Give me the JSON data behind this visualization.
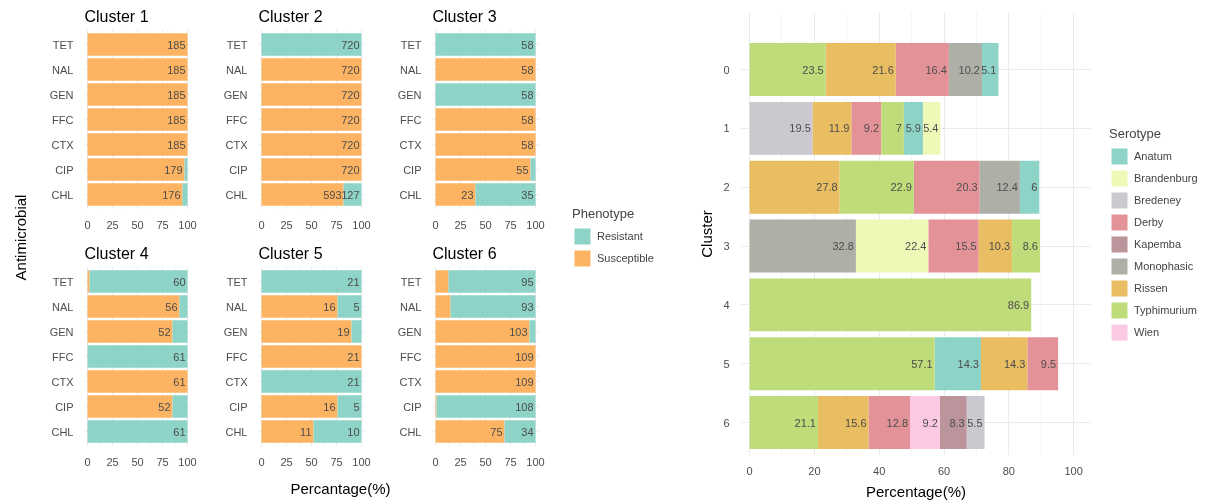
{
  "chart_data": [
    {
      "type": "bar",
      "orientation": "horizontal",
      "stacked": true,
      "title": "Cluster 1",
      "ylabel": "Antimicrobial",
      "categories": [
        "TET",
        "NAL",
        "GEN",
        "FFC",
        "CTX",
        "CIP",
        "CHL"
      ],
      "xlim": [
        -3,
        103
      ],
      "xticks": [
        0,
        25,
        50,
        75,
        100
      ],
      "grid": true,
      "series": [
        {
          "color": "#fdb462",
          "values": [
            100,
            100,
            100,
            100,
            100,
            97,
            95
          ]
        },
        {
          "color": "#8dd3c7",
          "values": [
            null,
            null,
            null,
            null,
            null,
            3,
            5
          ]
        }
      ],
      "annotations": [
        {
          "text": "185",
          "x": 100,
          "y": "TET"
        },
        {
          "text": "185",
          "x": 100,
          "y": "NAL"
        },
        {
          "text": "185",
          "x": 100,
          "y": "GEN"
        },
        {
          "text": "185",
          "x": 100,
          "y": "FFC"
        },
        {
          "text": "185",
          "x": 100,
          "y": "CTX"
        },
        {
          "text": "179",
          "x": 97,
          "y": "CIP"
        },
        {
          "text": "176",
          "x": 95,
          "y": "CHL"
        }
      ]
    },
    {
      "type": "bar",
      "orientation": "horizontal",
      "stacked": true,
      "title": "Cluster 2",
      "categories": [
        "TET",
        "NAL",
        "GEN",
        "FFC",
        "CTX",
        "CIP",
        "CHL"
      ],
      "xlim": [
        -3,
        103
      ],
      "xticks": [
        0,
        25,
        50,
        75,
        100
      ],
      "grid": true,
      "series": [
        {
          "color": "#fdb462",
          "values": [
            null,
            100,
            100,
            100,
            100,
            100,
            82
          ]
        },
        {
          "color": "#8dd3c7",
          "values": [
            100,
            null,
            null,
            null,
            null,
            null,
            18
          ]
        }
      ],
      "annotations": [
        {
          "text": "720",
          "x": 100,
          "y": "TET"
        },
        {
          "text": "720",
          "x": 100,
          "y": "NAL"
        },
        {
          "text": "720",
          "x": 100,
          "y": "GEN"
        },
        {
          "text": "720",
          "x": 100,
          "y": "FFC"
        },
        {
          "text": "720",
          "x": 100,
          "y": "CTX"
        },
        {
          "text": "720",
          "x": 100,
          "y": "CIP"
        },
        {
          "text": "593",
          "x": 82,
          "y": "CHL"
        },
        {
          "text": "127",
          "x": 100,
          "y": "CHL"
        }
      ]
    },
    {
      "type": "bar",
      "orientation": "horizontal",
      "stacked": true,
      "title": "Cluster 3",
      "legend": "right",
      "legend_title": "Phenotype",
      "categories": [
        "TET",
        "NAL",
        "GEN",
        "FFC",
        "CTX",
        "CIP",
        "CHL"
      ],
      "xlim": [
        -3,
        103
      ],
      "xticks": [
        0,
        25,
        50,
        75,
        100
      ],
      "grid": true,
      "series": [
        {
          "name": "Susceptible",
          "color": "#fdb462",
          "values": [
            null,
            100,
            null,
            100,
            100,
            95,
            40
          ]
        },
        {
          "name": "Resistant",
          "color": "#8dd3c7",
          "values": [
            100,
            null,
            100,
            null,
            null,
            5,
            60
          ]
        }
      ],
      "annotations": [
        {
          "text": "58",
          "x": 100,
          "y": "TET"
        },
        {
          "text": "58",
          "x": 100,
          "y": "NAL"
        },
        {
          "text": "58",
          "x": 100,
          "y": "GEN"
        },
        {
          "text": "58",
          "x": 100,
          "y": "FFC"
        },
        {
          "text": "58",
          "x": 100,
          "y": "CTX"
        },
        {
          "text": "55",
          "x": 95,
          "y": "CIP"
        },
        {
          "text": "23",
          "x": 40,
          "y": "CHL"
        },
        {
          "text": "35",
          "x": 100,
          "y": "CHL"
        }
      ]
    },
    {
      "type": "bar",
      "orientation": "horizontal",
      "stacked": true,
      "title": "Cluster 4",
      "categories": [
        "TET",
        "NAL",
        "GEN",
        "FFC",
        "CTX",
        "CIP",
        "CHL"
      ],
      "xlim": [
        -3,
        103
      ],
      "xticks": [
        0,
        25,
        50,
        75,
        100
      ],
      "grid": true,
      "series": [
        {
          "color": "#fdb462",
          "values": [
            2,
            92,
            85,
            null,
            100,
            85,
            null
          ]
        },
        {
          "color": "#8dd3c7",
          "values": [
            98,
            8,
            15,
            100,
            null,
            15,
            100
          ]
        }
      ],
      "annotations": [
        {
          "text": "60",
          "x": 100,
          "y": "TET"
        },
        {
          "text": "56",
          "x": 92,
          "y": "NAL"
        },
        {
          "text": "52",
          "x": 85,
          "y": "GEN"
        },
        {
          "text": "61",
          "x": 100,
          "y": "FFC"
        },
        {
          "text": "61",
          "x": 100,
          "y": "CTX"
        },
        {
          "text": "52",
          "x": 85,
          "y": "CIP"
        },
        {
          "text": "61",
          "x": 100,
          "y": "CHL"
        }
      ]
    },
    {
      "type": "bar",
      "orientation": "horizontal",
      "stacked": true,
      "title": "Cluster 5",
      "xlabel": "Percantage(%)",
      "categories": [
        "TET",
        "NAL",
        "GEN",
        "FFC",
        "CTX",
        "CIP",
        "CHL"
      ],
      "xlim": [
        -3,
        103
      ],
      "xticks": [
        0,
        25,
        50,
        75,
        100
      ],
      "grid": true,
      "series": [
        {
          "color": "#fdb462",
          "values": [
            null,
            76,
            90,
            100,
            null,
            76,
            52
          ]
        },
        {
          "color": "#8dd3c7",
          "values": [
            100,
            24,
            10,
            null,
            100,
            24,
            48
          ]
        }
      ],
      "annotations": [
        {
          "text": "21",
          "x": 100,
          "y": "TET"
        },
        {
          "text": "16",
          "x": 76,
          "y": "NAL"
        },
        {
          "text": "5",
          "x": 100,
          "y": "NAL"
        },
        {
          "text": "19",
          "x": 90,
          "y": "GEN"
        },
        {
          "text": "21",
          "x": 100,
          "y": "FFC"
        },
        {
          "text": "21",
          "x": 100,
          "y": "CTX"
        },
        {
          "text": "16",
          "x": 76,
          "y": "CIP"
        },
        {
          "text": "5",
          "x": 100,
          "y": "CIP"
        },
        {
          "text": "11",
          "x": 52,
          "y": "CHL"
        },
        {
          "text": "10",
          "x": 100,
          "y": "CHL"
        }
      ]
    },
    {
      "type": "bar",
      "orientation": "horizontal",
      "stacked": true,
      "title": "Cluster 6",
      "categories": [
        "TET",
        "NAL",
        "GEN",
        "FFC",
        "CTX",
        "CIP",
        "CHL"
      ],
      "xlim": [
        -3,
        103
      ],
      "xticks": [
        0,
        25,
        50,
        75,
        100
      ],
      "grid": true,
      "series": [
        {
          "color": "#fdb462",
          "values": [
            13,
            15,
            94,
            100,
            100,
            1,
            69
          ]
        },
        {
          "color": "#8dd3c7",
          "values": [
            87,
            85,
            6,
            null,
            null,
            99,
            31
          ]
        }
      ],
      "annotations": [
        {
          "text": "95",
          "x": 100,
          "y": "TET"
        },
        {
          "text": "93",
          "x": 100,
          "y": "NAL"
        },
        {
          "text": "103",
          "x": 94,
          "y": "GEN"
        },
        {
          "text": "109",
          "x": 100,
          "y": "FFC"
        },
        {
          "text": "109",
          "x": 100,
          "y": "CTX"
        },
        {
          "text": "108",
          "x": 100,
          "y": "CIP"
        },
        {
          "text": "75",
          "x": 69,
          "y": "CHL"
        },
        {
          "text": "34",
          "x": 100,
          "y": "CHL"
        }
      ]
    },
    {
      "type": "bar",
      "orientation": "horizontal",
      "xlabel": "Percentage(%)",
      "ylabel": "Cluster",
      "legend": "right",
      "legend_title": "Serotype",
      "categories": [
        "0",
        "1",
        "2",
        "3",
        "4",
        "5",
        "6"
      ],
      "xlim": [
        -2.8,
        105.5
      ],
      "xticks": [
        0,
        20,
        40,
        60,
        80,
        100
      ],
      "grid": true,
      "data_labels": true,
      "series": [
        {
          "name": "Anatum",
          "color": "#8dd3c7",
          "values": [
            5.1,
            5.9,
            6,
            null,
            null,
            14.3,
            null
          ],
          "base": [
            71.7,
            47.6,
            83.4,
            null,
            null,
            57.1,
            null
          ]
        },
        {
          "name": "Brandenburg",
          "color": "#eff8b6",
          "values": [
            null,
            5.4,
            null,
            22.4,
            null,
            null,
            null
          ],
          "base": [
            null,
            53.5,
            null,
            32.8,
            null,
            null,
            null
          ]
        },
        {
          "name": "Bredeney",
          "color": "#cbc9cf",
          "values": [
            null,
            19.5,
            null,
            null,
            null,
            null,
            5.5
          ],
          "base": [
            null,
            0,
            null,
            null,
            null,
            null,
            67.0
          ]
        },
        {
          "name": "Derby",
          "color": "#e39398",
          "values": [
            16.4,
            9.2,
            20.3,
            15.5,
            null,
            9.5,
            12.8
          ],
          "base": [
            45.1,
            31.4,
            50.7,
            55.2,
            null,
            85.7,
            36.7
          ]
        },
        {
          "name": "Kapemba",
          "color": "#bc949c",
          "values": [
            null,
            null,
            null,
            null,
            null,
            null,
            8.3
          ],
          "base": [
            null,
            null,
            null,
            null,
            null,
            null,
            58.7
          ]
        },
        {
          "name": "Monophasic",
          "color": "#aeafa7",
          "values": [
            10.2,
            null,
            12.4,
            32.8,
            null,
            null,
            null
          ],
          "base": [
            61.5,
            null,
            71.0,
            0,
            null,
            null,
            null
          ]
        },
        {
          "name": "Rissen",
          "color": "#e9bd61",
          "values": [
            21.6,
            11.9,
            27.8,
            10.3,
            null,
            14.3,
            15.6
          ],
          "base": [
            23.5,
            19.5,
            0,
            70.7,
            null,
            71.4,
            21.1
          ]
        },
        {
          "name": "Typhimurium",
          "color": "#bedc7a",
          "values": [
            23.5,
            7,
            22.9,
            8.6,
            86.9,
            57.1,
            21.1
          ],
          "base": [
            0,
            40.6,
            27.8,
            81.0,
            0,
            0,
            0
          ]
        },
        {
          "name": "Wien",
          "color": "#fbc9e3",
          "values": [
            null,
            null,
            null,
            null,
            null,
            null,
            9.2
          ],
          "base": [
            null,
            null,
            null,
            null,
            null,
            null,
            49.5
          ]
        }
      ]
    }
  ]
}
